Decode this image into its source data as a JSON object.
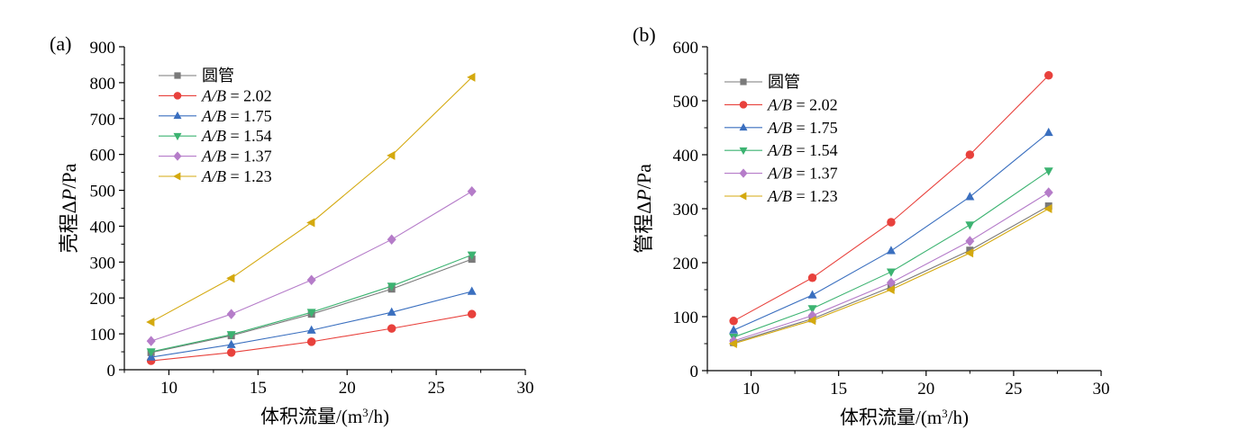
{
  "chart_data": [
    {
      "type": "line",
      "panel_label": "(a)",
      "xlabel": "体积流量/(m³/h)",
      "xlabel_parts": {
        "pre": "体积流量/(m",
        "sup": "3",
        "post": "/h)"
      },
      "ylabel": "壳程ΔP/Pa",
      "ylabel_parts": {
        "pre": "壳程Δ",
        "ital": "P",
        "post": "/Pa"
      },
      "xlim": [
        7.5,
        30
      ],
      "ylim": [
        0,
        900
      ],
      "xticks": [
        10,
        15,
        20,
        25,
        30
      ],
      "yticks": [
        0,
        100,
        200,
        300,
        400,
        500,
        600,
        700,
        800,
        900
      ],
      "grid": false,
      "legend_position": "top-left",
      "x": [
        9,
        13.5,
        18,
        22.5,
        27
      ],
      "series": [
        {
          "name": "圆管",
          "legend_plain": "圆管",
          "marker": "square",
          "color": "#7a7a7a",
          "values": [
            48,
            95,
            155,
            225,
            308
          ]
        },
        {
          "name": "A/B = 2.02",
          "legend_ital": "A/B",
          "legend_rest": " = 2.02",
          "marker": "circle",
          "color": "#e8413c",
          "values": [
            25,
            48,
            78,
            115,
            155
          ]
        },
        {
          "name": "A/B = 1.75",
          "legend_ital": "A/B",
          "legend_rest": " = 1.75",
          "marker": "triangle-up",
          "color": "#3a6fbf",
          "values": [
            35,
            70,
            110,
            160,
            218
          ]
        },
        {
          "name": "A/B = 1.54",
          "legend_ital": "A/B",
          "legend_rest": " = 1.54",
          "marker": "triangle-down",
          "color": "#3cb371",
          "values": [
            50,
            98,
            160,
            233,
            320
          ]
        },
        {
          "name": "A/B = 1.37",
          "legend_ital": "A/B",
          "legend_rest": " = 1.37",
          "marker": "diamond",
          "color": "#b57cc9",
          "values": [
            80,
            155,
            250,
            363,
            497
          ]
        },
        {
          "name": "A/B = 1.23",
          "legend_ital": "A/B",
          "legend_rest": " = 1.23",
          "marker": "triangle-left",
          "color": "#d4a90f",
          "values": [
            133,
            255,
            410,
            597,
            815
          ]
        }
      ]
    },
    {
      "type": "line",
      "panel_label": "(b)",
      "xlabel": "体积流量/(m³/h)",
      "xlabel_parts": {
        "pre": "体积流量/(m",
        "sup": "3",
        "post": "/h)"
      },
      "ylabel": "管程ΔP/Pa",
      "ylabel_parts": {
        "pre": "管程Δ",
        "ital": "P",
        "post": "/Pa"
      },
      "xlim": [
        7.5,
        30
      ],
      "ylim": [
        0,
        600
      ],
      "xticks": [
        10,
        15,
        20,
        25,
        30
      ],
      "yticks": [
        0,
        100,
        200,
        300,
        400,
        500,
        600
      ],
      "grid": false,
      "legend_position": "top-left",
      "x": [
        9,
        13.5,
        18,
        22.5,
        27
      ],
      "series": [
        {
          "name": "圆管",
          "legend_plain": "圆管",
          "marker": "square",
          "color": "#7a7a7a",
          "values": [
            52,
            96,
            155,
            223,
            305
          ]
        },
        {
          "name": "A/B = 2.02",
          "legend_ital": "A/B",
          "legend_rest": " = 2.02",
          "marker": "circle",
          "color": "#e8413c",
          "values": [
            92,
            172,
            275,
            400,
            547
          ]
        },
        {
          "name": "A/B = 1.75",
          "legend_ital": "A/B",
          "legend_rest": " = 1.75",
          "marker": "triangle-up",
          "color": "#3a6fbf",
          "values": [
            75,
            140,
            222,
            322,
            441
          ]
        },
        {
          "name": "A/B = 1.54",
          "legend_ital": "A/B",
          "legend_rest": " = 1.54",
          "marker": "triangle-down",
          "color": "#3cb371",
          "values": [
            62,
            115,
            183,
            270,
            370
          ]
        },
        {
          "name": "A/B = 1.37",
          "legend_ital": "A/B",
          "legend_rest": " = 1.37",
          "marker": "diamond",
          "color": "#b57cc9",
          "values": [
            55,
            102,
            163,
            240,
            330
          ]
        },
        {
          "name": "A/B = 1.23",
          "legend_ital": "A/B",
          "legend_rest": " = 1.23",
          "marker": "triangle-left",
          "color": "#d4a90f",
          "values": [
            50,
            93,
            150,
            218,
            300
          ]
        }
      ]
    }
  ]
}
